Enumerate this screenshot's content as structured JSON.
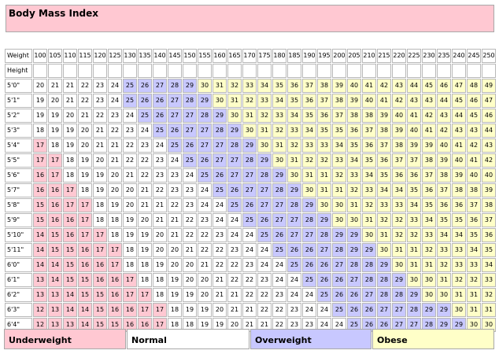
{
  "title": "Body Mass Index",
  "weight_label": "Weight",
  "height_label": "Height",
  "weights": [
    "100",
    "105",
    "110",
    "115",
    "120",
    "125",
    "130",
    "135",
    "140",
    "145",
    "150",
    "155",
    "160",
    "165",
    "170",
    "175",
    "180",
    "185",
    "190",
    "195",
    "200",
    "205",
    "210",
    "215",
    "220",
    "225",
    "230",
    "235",
    "240",
    "245",
    "250"
  ],
  "heights": [
    "5'0\"",
    "5'1\"",
    "5'2\"",
    "5'3\"",
    "5'4\"",
    "5'5\"",
    "5'6\"",
    "5'7\"",
    "5'8\"",
    "5'9\"",
    "5'10\"",
    "5'11\"",
    "6'0\"",
    "6'1\"",
    "6'2\"",
    "6'3\"",
    "6'4\""
  ],
  "rows": [
    [
      20,
      21,
      21,
      22,
      23,
      24,
      25,
      26,
      27,
      28,
      29,
      30,
      31,
      32,
      33,
      34,
      35,
      36,
      37,
      38,
      39,
      40,
      41,
      42,
      43,
      44,
      45,
      46,
      47,
      48,
      49
    ],
    [
      19,
      20,
      21,
      22,
      23,
      24,
      25,
      26,
      26,
      27,
      28,
      29,
      30,
      31,
      32,
      33,
      34,
      35,
      36,
      37,
      38,
      39,
      40,
      41,
      42,
      43,
      43,
      44,
      45,
      46,
      47
    ],
    [
      19,
      19,
      20,
      21,
      22,
      23,
      24,
      25,
      26,
      27,
      27,
      28,
      29,
      30,
      31,
      32,
      33,
      34,
      35,
      36,
      37,
      38,
      38,
      39,
      40,
      41,
      42,
      43,
      44,
      45,
      46
    ],
    [
      18,
      19,
      19,
      20,
      21,
      22,
      23,
      24,
      25,
      26,
      27,
      27,
      28,
      29,
      30,
      31,
      32,
      33,
      34,
      35,
      35,
      36,
      37,
      38,
      39,
      40,
      41,
      42,
      43,
      43,
      44
    ],
    [
      17,
      18,
      19,
      20,
      21,
      21,
      22,
      23,
      24,
      25,
      26,
      27,
      27,
      28,
      29,
      30,
      31,
      32,
      33,
      33,
      34,
      35,
      36,
      37,
      38,
      39,
      39,
      40,
      41,
      42,
      43
    ],
    [
      17,
      17,
      18,
      19,
      20,
      21,
      22,
      22,
      23,
      24,
      25,
      26,
      27,
      27,
      28,
      29,
      30,
      31,
      32,
      32,
      33,
      34,
      35,
      36,
      37,
      37,
      38,
      39,
      40,
      41,
      42
    ],
    [
      16,
      17,
      18,
      19,
      19,
      20,
      21,
      22,
      23,
      23,
      24,
      25,
      26,
      27,
      27,
      28,
      29,
      30,
      31,
      31,
      32,
      33,
      34,
      35,
      36,
      36,
      37,
      38,
      39,
      40,
      40
    ],
    [
      16,
      16,
      17,
      18,
      19,
      20,
      20,
      21,
      22,
      23,
      23,
      24,
      25,
      26,
      27,
      27,
      28,
      29,
      30,
      31,
      31,
      32,
      33,
      34,
      34,
      35,
      36,
      37,
      38,
      38,
      39
    ],
    [
      15,
      16,
      17,
      17,
      18,
      19,
      20,
      21,
      21,
      22,
      23,
      24,
      24,
      25,
      26,
      27,
      27,
      28,
      29,
      30,
      30,
      31,
      32,
      33,
      33,
      34,
      35,
      36,
      36,
      37,
      38
    ],
    [
      15,
      16,
      16,
      17,
      18,
      18,
      19,
      20,
      21,
      21,
      22,
      23,
      24,
      24,
      25,
      26,
      27,
      27,
      28,
      29,
      30,
      30,
      31,
      32,
      32,
      33,
      34,
      35,
      35,
      36,
      37
    ],
    [
      14,
      15,
      16,
      17,
      17,
      18,
      19,
      19,
      20,
      21,
      22,
      22,
      23,
      24,
      24,
      25,
      26,
      27,
      27,
      28,
      29,
      29,
      30,
      31,
      32,
      32,
      33,
      34,
      34,
      35,
      36
    ],
    [
      14,
      15,
      15,
      16,
      17,
      17,
      18,
      19,
      20,
      20,
      21,
      22,
      22,
      23,
      24,
      24,
      25,
      26,
      26,
      27,
      28,
      29,
      29,
      30,
      31,
      31,
      32,
      33,
      33,
      34,
      35
    ],
    [
      14,
      14,
      15,
      16,
      16,
      17,
      18,
      18,
      19,
      20,
      20,
      21,
      22,
      22,
      23,
      24,
      24,
      25,
      26,
      26,
      27,
      28,
      28,
      29,
      30,
      31,
      31,
      32,
      33,
      33,
      34
    ],
    [
      13,
      14,
      15,
      15,
      16,
      16,
      17,
      18,
      18,
      19,
      20,
      20,
      21,
      22,
      22,
      23,
      24,
      24,
      25,
      26,
      26,
      27,
      28,
      28,
      29,
      30,
      30,
      31,
      32,
      32,
      33
    ],
    [
      13,
      13,
      14,
      15,
      15,
      16,
      17,
      17,
      18,
      19,
      19,
      20,
      21,
      21,
      22,
      22,
      23,
      24,
      24,
      25,
      26,
      26,
      27,
      28,
      28,
      29,
      30,
      30,
      31,
      31,
      32
    ],
    [
      12,
      13,
      14,
      14,
      15,
      16,
      16,
      17,
      17,
      18,
      19,
      19,
      20,
      21,
      21,
      22,
      22,
      23,
      24,
      24,
      25,
      26,
      26,
      27,
      27,
      28,
      29,
      29,
      30,
      31,
      31
    ],
    [
      12,
      13,
      13,
      14,
      15,
      15,
      16,
      16,
      17,
      18,
      18,
      19,
      19,
      20,
      21,
      21,
      22,
      23,
      23,
      24,
      24,
      25,
      26,
      26,
      27,
      27,
      28,
      29,
      29,
      30,
      30
    ]
  ],
  "legend": {
    "underweight": "Underweight",
    "normal": "Normal",
    "overweight": "Overweight",
    "obese": "Obese"
  },
  "colors": {
    "underweight": "#ffc8d2",
    "normal": "#ffffff",
    "overweight": "#c8c8ff",
    "obese": "#ffffc8"
  }
}
